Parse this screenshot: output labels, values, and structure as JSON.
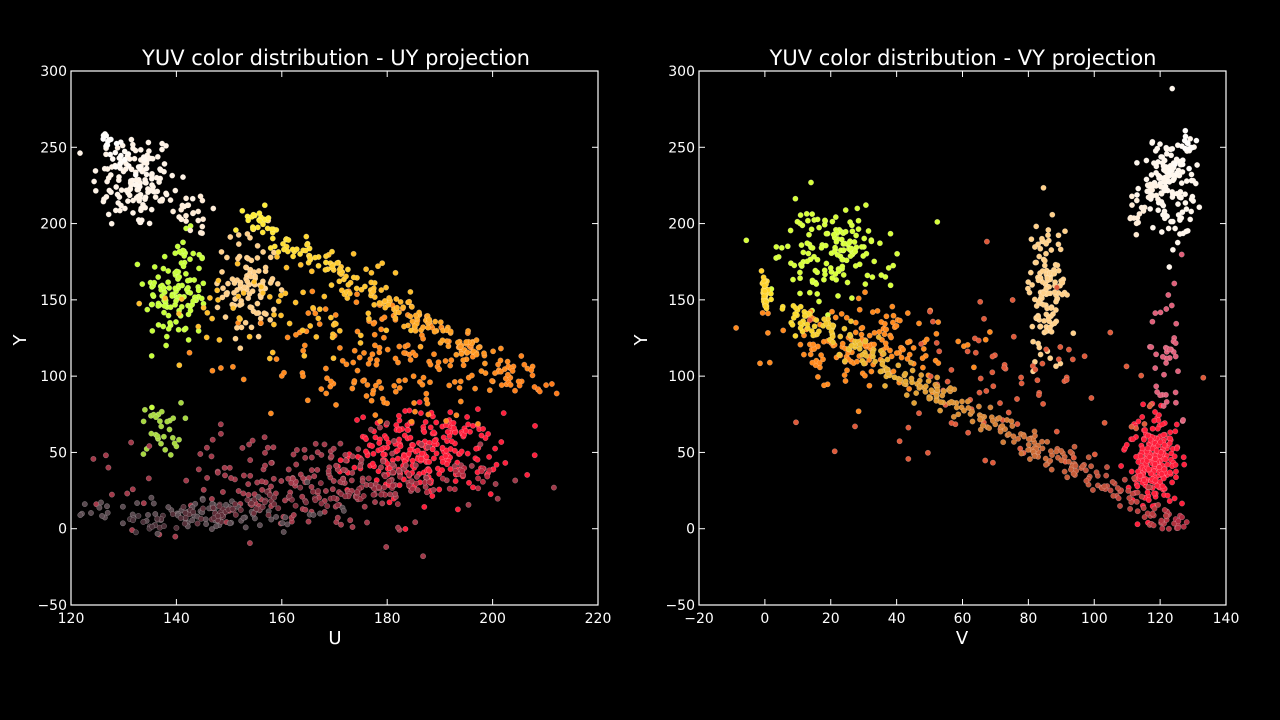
{
  "chart_data": [
    {
      "type": "scatter",
      "title": "YUV color distribution - UY projection",
      "xlabel": "U",
      "ylabel": "Y",
      "xlim": [
        120,
        220
      ],
      "ylim": [
        -50,
        300
      ],
      "xticks": [
        "120",
        "140",
        "160",
        "180",
        "200",
        "220"
      ],
      "yticks": [
        "−50",
        "0",
        "50",
        "100",
        "150",
        "200",
        "250",
        "300"
      ],
      "background": "#000000",
      "grid": false,
      "clusters": [
        {
          "name": "white",
          "color": "#fff3e6",
          "center": [
            132,
            228
          ],
          "spread": [
            4,
            16
          ],
          "count": 120
        },
        {
          "name": "light-green",
          "color": "#c8ff3a",
          "center": [
            140,
            155
          ],
          "spread": [
            3,
            18
          ],
          "count": 120
        },
        {
          "name": "peach",
          "color": "#ffd08a",
          "center": [
            154,
            160
          ],
          "spread": [
            2.5,
            18
          ],
          "count": 100
        },
        {
          "name": "olive",
          "color": "#a8d840",
          "center": [
            137,
            65
          ],
          "spread": [
            2,
            9
          ],
          "count": 30
        },
        {
          "name": "red",
          "color": "#ff1f3c",
          "center": [
            187,
            50
          ],
          "spread": [
            7,
            13
          ],
          "count": 260
        },
        {
          "name": "maroon",
          "color": "#a23a4a",
          "center": [
            165,
            30
          ],
          "spread": [
            16,
            16
          ],
          "count": 220
        },
        {
          "name": "dark-gray",
          "color": "#5a4a50",
          "center": [
            145,
            10
          ],
          "spread": [
            12,
            6
          ],
          "count": 90
        },
        {
          "name": "orange-fill",
          "color": "#ff8a1e",
          "center": [
            180,
            110
          ],
          "spread": [
            12,
            22
          ],
          "count": 160
        },
        {
          "name": "gold-fill",
          "color": "#ffbf2a",
          "center": [
            165,
            150
          ],
          "spread": [
            12,
            18
          ],
          "count": 80
        }
      ],
      "edges": [
        {
          "name": "yellow-band",
          "from": [
            152,
            207
          ],
          "to": [
            210,
            87
          ],
          "color_from": "#fff23a",
          "color_to": "#ff7a1a",
          "count": 220,
          "jitter": [
            1.5,
            4
          ]
        },
        {
          "name": "white-band",
          "from": [
            126,
            255
          ],
          "to": [
            146,
            200
          ],
          "color_from": "#ffffff",
          "color_to": "#ffe9d0",
          "count": 70,
          "jitter": [
            1.5,
            5
          ]
        },
        {
          "name": "bottom-band",
          "from": [
            128,
            0
          ],
          "to": [
            200,
            38
          ],
          "color_from": "#3a3036",
          "color_to": "#c02a40",
          "count": 140,
          "jitter": [
            1.5,
            4
          ]
        }
      ]
    },
    {
      "type": "scatter",
      "title": "YUV color distribution - VY projection",
      "xlabel": "V",
      "ylabel": "Y",
      "xlim": [
        -20,
        140
      ],
      "ylim": [
        -50,
        300
      ],
      "xticks": [
        "−20",
        "0",
        "20",
        "40",
        "60",
        "80",
        "100",
        "120",
        "140"
      ],
      "yticks": [
        "−50",
        "0",
        "50",
        "100",
        "150",
        "200",
        "250",
        "300"
      ],
      "background": "#000000",
      "grid": false,
      "clusters": [
        {
          "name": "white",
          "color": "#fff6ec",
          "center": [
            123,
            225
          ],
          "spread": [
            4,
            18
          ],
          "count": 120
        },
        {
          "name": "yellow-green",
          "color": "#d8ff3a",
          "center": [
            20,
            180
          ],
          "spread": [
            8,
            15
          ],
          "count": 150
        },
        {
          "name": "peach",
          "color": "#ffd08a",
          "center": [
            85,
            155
          ],
          "spread": [
            3,
            22
          ],
          "count": 130
        },
        {
          "name": "red",
          "color": "#ff1f3c",
          "center": [
            118,
            45
          ],
          "spread": [
            4,
            15
          ],
          "count": 240
        },
        {
          "name": "orange-fill",
          "color": "#ff8a1e",
          "center": [
            30,
            120
          ],
          "spread": [
            14,
            14
          ],
          "count": 160
        },
        {
          "name": "sparse-mid",
          "color": "#e05a3a",
          "center": [
            75,
            95
          ],
          "spread": [
            22,
            30
          ],
          "count": 90
        },
        {
          "name": "pink",
          "color": "#e0607a",
          "center": [
            122,
            110
          ],
          "spread": [
            3,
            25
          ],
          "count": 40
        }
      ],
      "edges": [
        {
          "name": "diagonal-band",
          "from": [
            0,
            150
          ],
          "to": [
            128,
            0
          ],
          "color_from": "#ffe52a",
          "color_to": "#b02a40",
          "count": 320,
          "jitter": [
            1.5,
            5
          ]
        },
        {
          "name": "left-stripe",
          "from": [
            0,
            145
          ],
          "to": [
            0,
            165
          ],
          "color_from": "#ffd52a",
          "color_to": "#ffcf2a",
          "count": 40,
          "jitter": [
            0.4,
            2
          ]
        },
        {
          "name": "white-band",
          "from": [
            110,
            200
          ],
          "to": [
            130,
            255
          ],
          "color_from": "#ffe9d0",
          "color_to": "#ffffff",
          "count": 60,
          "jitter": [
            1.5,
            4
          ]
        }
      ]
    }
  ]
}
